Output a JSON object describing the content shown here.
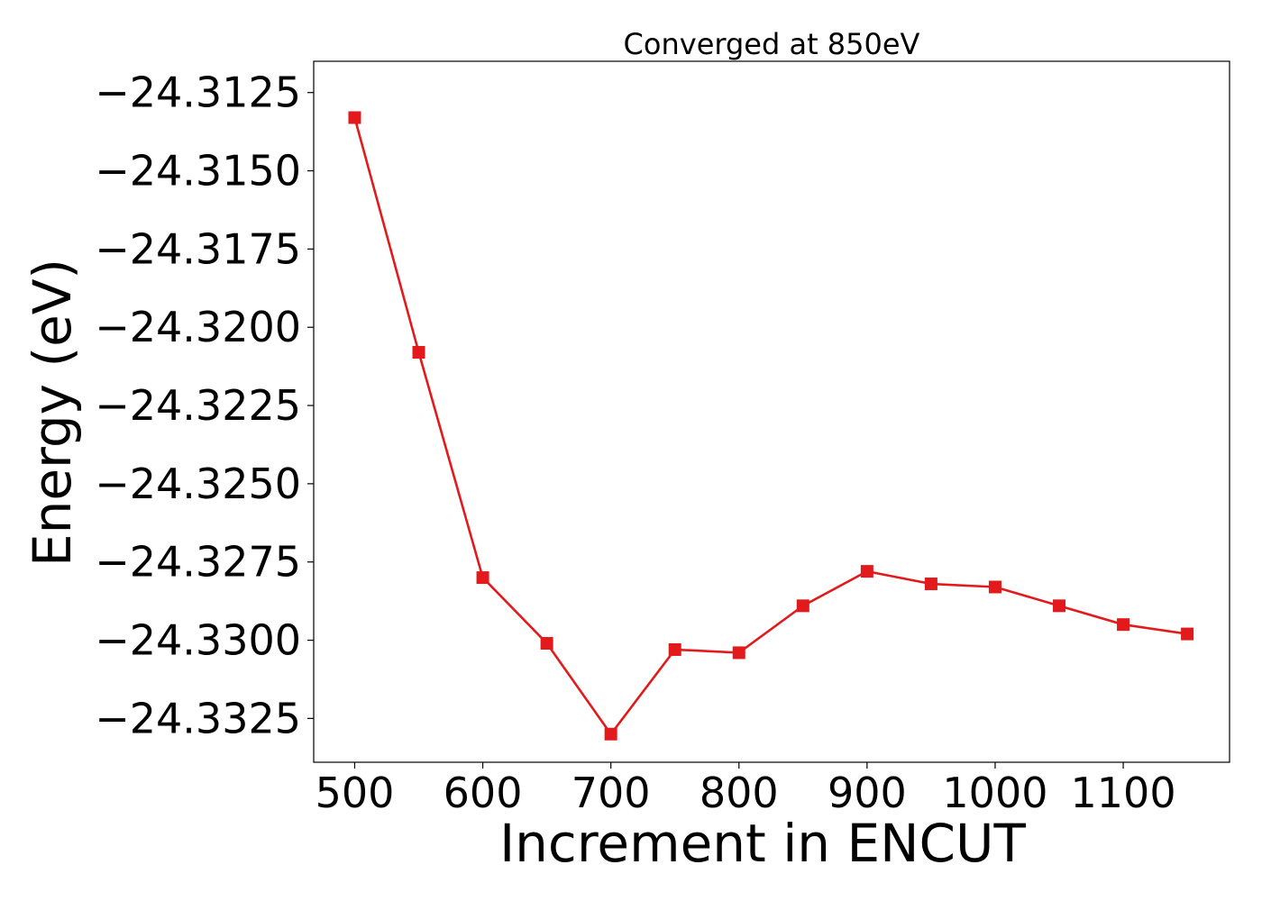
{
  "chart_data": {
    "type": "line",
    "title": "Converged at 850eV",
    "xlabel": "Increment in ENCUT",
    "ylabel": "Energy (eV)",
    "xlim": [
      468,
      1183
    ],
    "ylim": [
      -24.3339,
      -24.3115
    ],
    "xticks": [
      500,
      600,
      700,
      800,
      900,
      1000,
      1100
    ],
    "yticks": [
      -24.3125,
      -24.315,
      -24.3175,
      -24.32,
      -24.3225,
      -24.325,
      -24.3275,
      -24.33,
      -24.3325
    ],
    "ytick_labels": [
      "−24.3125",
      "−24.3150",
      "−24.3175",
      "−24.3200",
      "−24.3225",
      "−24.3250",
      "−24.3275",
      "−24.3300",
      "−24.3325"
    ],
    "grid": false,
    "series": [
      {
        "color": "#e31a1c",
        "marker": "square",
        "x": [
          500,
          550,
          600,
          650,
          700,
          750,
          800,
          850,
          900,
          950,
          1000,
          1050,
          1100,
          1150
        ],
        "y": [
          -24.3133,
          -24.3208,
          -24.328,
          -24.3301,
          -24.333,
          -24.3303,
          -24.3304,
          -24.3289,
          -24.3278,
          -24.3282,
          -24.3283,
          -24.3289,
          -24.3295,
          -24.3298
        ]
      }
    ]
  }
}
